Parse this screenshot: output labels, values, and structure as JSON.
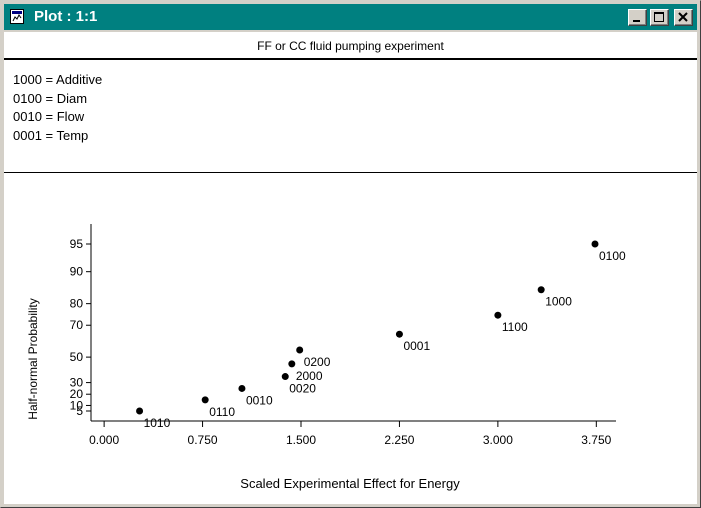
{
  "window": {
    "title": "Plot : 1:1",
    "minimize_icon": "minimize-icon",
    "maximize_icon": "maximize-icon",
    "close_icon": "close-icon",
    "app_icon": "plot-app-icon",
    "title_bar_color": "#008080"
  },
  "plot": {
    "title": "FF or CC fluid pumping experiment",
    "legend": [
      "1000 = Additive",
      "0100 = Diam",
      "0010 = Flow",
      "0001 = Temp"
    ]
  },
  "chart_data": {
    "type": "scatter",
    "xlabel": "Scaled Experimental Effect for Energy",
    "ylabel": "Half-normal Probability",
    "x_ticks": [
      "0.000",
      "0.750",
      "1.500",
      "2.250",
      "3.000",
      "3.750"
    ],
    "x_tick_values": [
      0,
      0.75,
      1.5,
      2.25,
      3.0,
      3.75
    ],
    "y_ticks": [
      "5",
      "10",
      "20",
      "30",
      "50",
      "70",
      "80",
      "90",
      "95"
    ],
    "y_tick_values": [
      5,
      10,
      20,
      30,
      50,
      70,
      80,
      90,
      95
    ],
    "xlim": [
      -0.1,
      3.9
    ],
    "y_scale": "half-normal probability",
    "grid": false,
    "points": [
      {
        "label": "1010",
        "x": 0.27,
        "y": 5
      },
      {
        "label": "0110",
        "x": 0.77,
        "y": 15
      },
      {
        "label": "0010",
        "x": 1.05,
        "y": 25
      },
      {
        "label": "0020",
        "x": 1.38,
        "y": 35
      },
      {
        "label": "2000",
        "x": 1.43,
        "y": 45
      },
      {
        "label": "0200",
        "x": 1.49,
        "y": 55
      },
      {
        "label": "0001",
        "x": 2.25,
        "y": 65
      },
      {
        "label": "1100",
        "x": 3.0,
        "y": 75
      },
      {
        "label": "1000",
        "x": 3.33,
        "y": 85
      },
      {
        "label": "0100",
        "x": 3.74,
        "y": 95
      }
    ]
  }
}
